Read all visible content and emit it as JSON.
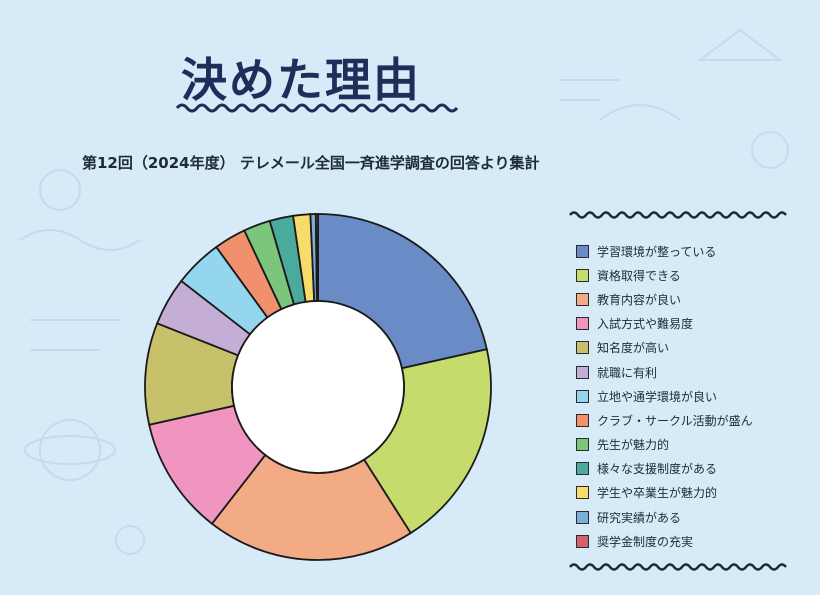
{
  "title": "決めた理由",
  "subtitle": "第12回（2024年度） テレメール全国一斉進学調査の回答より集計",
  "chart_data": {
    "type": "pie",
    "donut": true,
    "legend_position": "right",
    "categories": [
      "学習環境が整っている",
      "資格取得できる",
      "教育内容が良い",
      "入試方式や難易度",
      "知名度が高い",
      "就職に有利",
      "立地や通学環境が良い",
      "クラブ・サークル活動が盛ん",
      "先生が魅力的",
      "様々な支援制度がある",
      "学生や卒業生が魅力的",
      "研究実績がある",
      "奨学金制度の充実"
    ],
    "values": [
      21.5,
      19.5,
      19.5,
      11.0,
      9.5,
      4.5,
      4.5,
      3.0,
      2.5,
      2.2,
      1.6,
      0.5,
      0.2
    ],
    "colors": [
      "#6a8cc6",
      "#c5dc6c",
      "#f3ab85",
      "#f095c0",
      "#c8c16c",
      "#c5aed6",
      "#94d6ee",
      "#f0906c",
      "#7cc67c",
      "#4aab9c",
      "#f7dc6c",
      "#7ab0d6",
      "#d6606c"
    ]
  }
}
